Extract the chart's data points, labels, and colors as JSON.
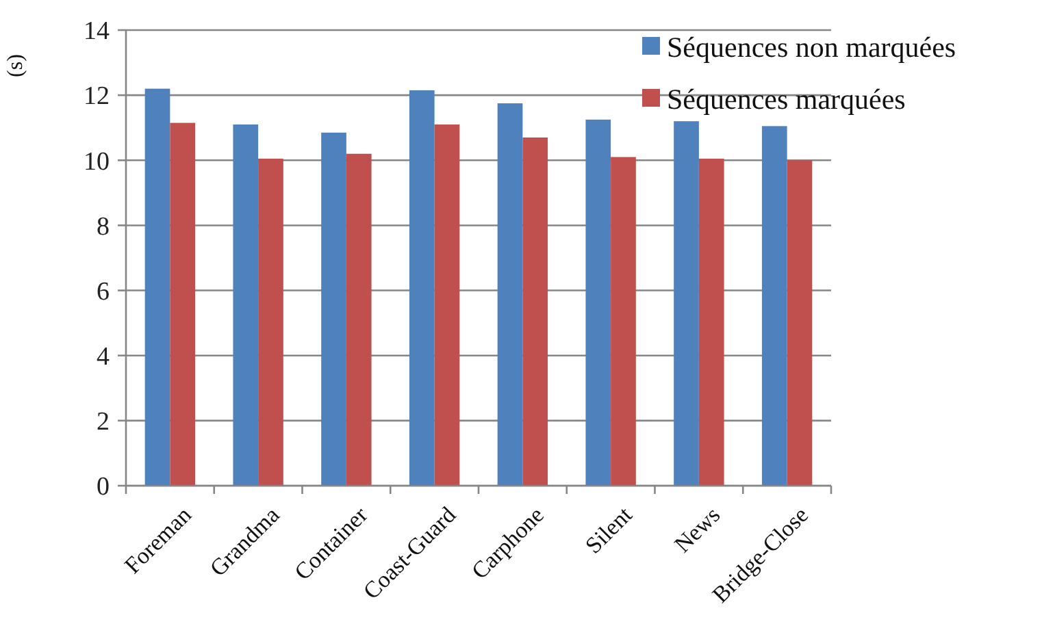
{
  "chart_data": {
    "type": "bar",
    "ylabel": "(s)",
    "categories": [
      "Foreman",
      "Grandma",
      "Container",
      "Coast-Guard",
      "Carphone",
      "Silent",
      "News",
      "Bridge-Close"
    ],
    "series": [
      {
        "name": "Séquences non marquées",
        "color": "#4f81bd",
        "values": [
          12.2,
          11.1,
          10.85,
          12.15,
          11.75,
          11.25,
          11.2,
          11.05
        ]
      },
      {
        "name": "Séquences marquées",
        "color": "#c0504d",
        "values": [
          11.15,
          10.05,
          10.2,
          11.1,
          10.7,
          10.1,
          10.05,
          10.0
        ]
      }
    ],
    "ylim": [
      0,
      14
    ],
    "yticks": [
      0,
      2,
      4,
      6,
      8,
      10,
      12,
      14
    ],
    "grid": "y",
    "legend": "top right"
  }
}
